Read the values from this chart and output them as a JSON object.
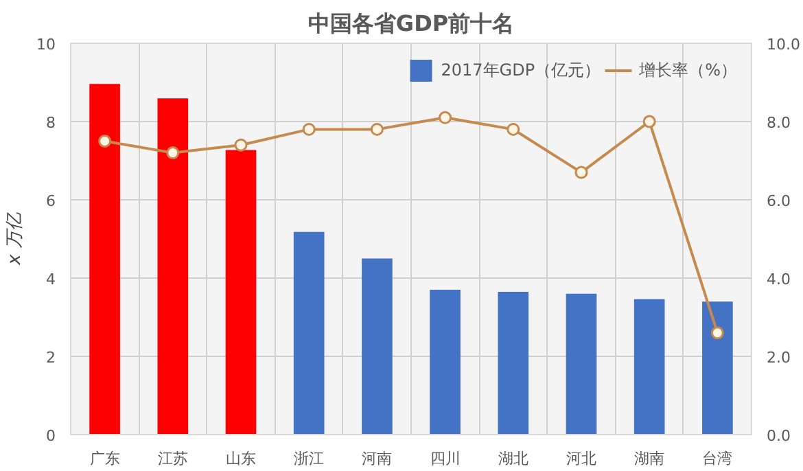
{
  "chart_data": {
    "type": "bar",
    "title": "中国各省GDP前十名",
    "ylabel": "x 万亿",
    "categories": [
      "广东",
      "江苏",
      "山东",
      "浙江",
      "河南",
      "四川",
      "湖北",
      "河北",
      "湖南",
      "台湾"
    ],
    "series": [
      {
        "name": "2017年GDP（亿元）",
        "color": "#4472c4",
        "colors": [
          "#ff0000",
          "#ff0000",
          "#ff0000",
          "#4472c4",
          "#4472c4",
          "#4472c4",
          "#4472c4",
          "#4472c4",
          "#4472c4",
          "#4472c4"
        ],
        "values": [
          8.96,
          8.59,
          7.27,
          5.18,
          4.5,
          3.7,
          3.65,
          3.6,
          3.46,
          3.4
        ]
      },
      {
        "name": "增长率（%）",
        "type": "line",
        "axis": "y2",
        "color": "#c58a4f",
        "marker": "circle",
        "values": [
          7.5,
          7.2,
          7.4,
          7.8,
          7.8,
          8.1,
          7.8,
          6.7,
          8.0,
          2.6
        ]
      }
    ],
    "ylim": [
      0,
      10
    ],
    "yticks": [
      0,
      2,
      4,
      6,
      8,
      10
    ],
    "y2lim": [
      0,
      10
    ],
    "y2ticks": [
      {
        "value": 0,
        "label": "0.0"
      },
      {
        "value": 2,
        "label": "2.0"
      },
      {
        "value": 4,
        "label": "4.0"
      },
      {
        "value": 6,
        "label": "6.0"
      },
      {
        "value": 8,
        "label": "8.0"
      },
      {
        "value": 10,
        "label": "10.0"
      }
    ],
    "grid": true,
    "legend": "top right"
  }
}
